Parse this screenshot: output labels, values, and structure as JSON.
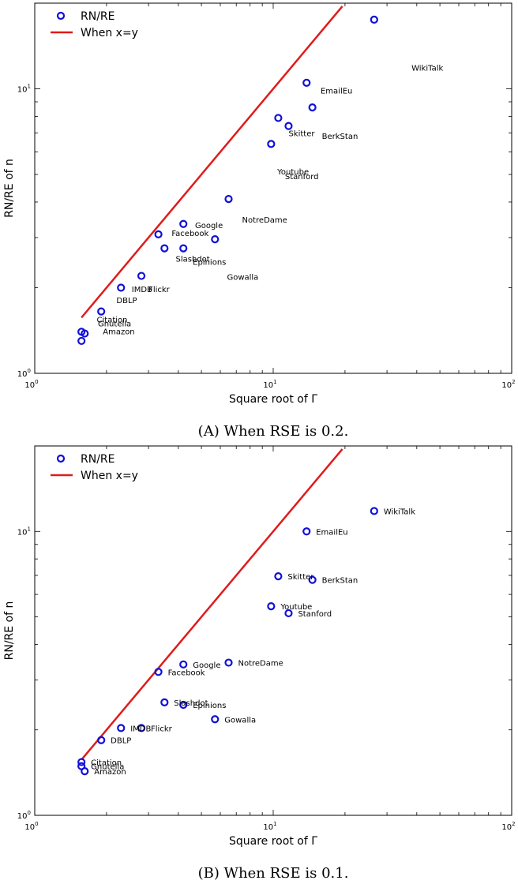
{
  "chart_data": [
    {
      "type": "scatter",
      "caption": "(A) When RSE is 0.2.",
      "xlabel": "Square root of Γ",
      "ylabel": "RN/RE of n",
      "xscale": "log",
      "yscale": "log",
      "xlim": [
        1,
        100
      ],
      "ylim": [
        1,
        20
      ],
      "xticks": [
        {
          "v": 1,
          "label": "10",
          "exp": "0"
        },
        {
          "v": 10,
          "label": "10",
          "exp": "1"
        },
        {
          "v": 100,
          "label": "10",
          "exp": "2"
        }
      ],
      "yticks": [
        {
          "v": 1,
          "label": "10",
          "exp": "0"
        },
        {
          "v": 10,
          "label": "10",
          "exp": "1"
        }
      ],
      "legend": {
        "position": "top-left",
        "entries": [
          "RN/RE",
          "When x=y"
        ]
      },
      "colors": {
        "points": "#1010d8",
        "line": "#e01b1b"
      },
      "line": {
        "name": "When x=y",
        "x": [
          1.57,
          19.5
        ],
        "y": [
          1.57,
          19.5
        ]
      },
      "series": [
        {
          "name": "RN/RE",
          "points": [
            {
              "x": 26.5,
              "y": 17.5,
              "label": ""
            },
            {
              "x": 13.8,
              "y": 10.5,
              "label": ""
            },
            {
              "x": 14.6,
              "y": 8.6,
              "label": ""
            },
            {
              "x": 10.5,
              "y": 7.9,
              "label": ""
            },
            {
              "x": 11.6,
              "y": 7.4,
              "label": ""
            },
            {
              "x": 9.8,
              "y": 6.4,
              "label": ""
            },
            {
              "x": 6.5,
              "y": 4.1,
              "label": ""
            },
            {
              "x": 4.2,
              "y": 3.35,
              "label": ""
            },
            {
              "x": 3.3,
              "y": 3.08,
              "label": ""
            },
            {
              "x": 5.7,
              "y": 2.96,
              "label": ""
            },
            {
              "x": 3.5,
              "y": 2.75,
              "label": ""
            },
            {
              "x": 4.2,
              "y": 2.75,
              "label": ""
            },
            {
              "x": 2.8,
              "y": 2.2,
              "label": ""
            },
            {
              "x": 2.3,
              "y": 2.0,
              "label": ""
            },
            {
              "x": 1.9,
              "y": 1.65,
              "label": ""
            },
            {
              "x": 1.57,
              "y": 1.4,
              "label": ""
            },
            {
              "x": 1.62,
              "y": 1.38,
              "label": ""
            },
            {
              "x": 1.57,
              "y": 1.3,
              "label": ""
            }
          ]
        }
      ],
      "labels": [
        {
          "text": "WikiTalk",
          "x": 38,
          "y": 11.8
        },
        {
          "text": "EmailEu",
          "x": 15.8,
          "y": 9.8
        },
        {
          "text": "Skitter",
          "x": 11.6,
          "y": 6.95
        },
        {
          "text": "BerkStan",
          "x": 16.0,
          "y": 6.8
        },
        {
          "text": "Youtube",
          "x": 10.4,
          "y": 5.1
        },
        {
          "text": "Stanford",
          "x": 11.2,
          "y": 4.9
        },
        {
          "text": "NotreDame",
          "x": 7.4,
          "y": 3.45
        },
        {
          "text": "Google",
          "x": 4.7,
          "y": 3.3
        },
        {
          "text": "Facebook",
          "x": 3.75,
          "y": 3.1
        },
        {
          "text": "Slashdot",
          "x": 3.9,
          "y": 2.52
        },
        {
          "text": "Epinions",
          "x": 4.6,
          "y": 2.45
        },
        {
          "text": "Gowalla",
          "x": 6.4,
          "y": 2.17
        },
        {
          "text": "IMDB",
          "x": 2.55,
          "y": 1.97
        },
        {
          "text": "Flickr",
          "x": 3.0,
          "y": 1.97
        },
        {
          "text": "DBLP",
          "x": 2.2,
          "y": 1.8
        },
        {
          "text": "Citation",
          "x": 1.82,
          "y": 1.54
        },
        {
          "text": "Gnutella",
          "x": 1.84,
          "y": 1.49
        },
        {
          "text": "Amazon",
          "x": 1.93,
          "y": 1.4
        }
      ]
    },
    {
      "type": "scatter",
      "caption": "(B) When RSE is 0.1.",
      "xlabel": "Square root of Γ",
      "ylabel": "RN/RE of n",
      "xscale": "log",
      "yscale": "log",
      "xlim": [
        1,
        100
      ],
      "ylim": [
        1,
        20
      ],
      "xticks": [
        {
          "v": 1,
          "label": "10",
          "exp": "0"
        },
        {
          "v": 10,
          "label": "10",
          "exp": "1"
        },
        {
          "v": 100,
          "label": "10",
          "exp": "2"
        }
      ],
      "yticks": [
        {
          "v": 1,
          "label": "10",
          "exp": "0"
        },
        {
          "v": 10,
          "label": "10",
          "exp": "1"
        }
      ],
      "legend": {
        "position": "top-left",
        "entries": [
          "RN/RE",
          "When x=y"
        ]
      },
      "colors": {
        "points": "#1010d8",
        "line": "#e01b1b"
      },
      "line": {
        "name": "When x=y",
        "x": [
          1.57,
          19.5
        ],
        "y": [
          1.57,
          19.5
        ]
      },
      "series": [
        {
          "name": "RN/RE",
          "points": [
            {
              "x": 26.5,
              "y": 11.8,
              "label": "WikiTalk"
            },
            {
              "x": 13.8,
              "y": 10.0,
              "label": "EmailEu"
            },
            {
              "x": 10.5,
              "y": 6.95,
              "label": "Skitter"
            },
            {
              "x": 14.6,
              "y": 6.75,
              "label": "BerkStan"
            },
            {
              "x": 9.8,
              "y": 5.45,
              "label": "Youtube"
            },
            {
              "x": 11.6,
              "y": 5.15,
              "label": "Stanford"
            },
            {
              "x": 6.5,
              "y": 3.45,
              "label": "NotreDame"
            },
            {
              "x": 4.2,
              "y": 3.4,
              "label": "Google"
            },
            {
              "x": 3.3,
              "y": 3.2,
              "label": "Facebook"
            },
            {
              "x": 3.5,
              "y": 2.5,
              "label": "Slashdot"
            },
            {
              "x": 4.2,
              "y": 2.45,
              "label": "Epinions"
            },
            {
              "x": 5.7,
              "y": 2.18,
              "label": "Gowalla"
            },
            {
              "x": 2.3,
              "y": 2.03,
              "label": "IMDB"
            },
            {
              "x": 2.8,
              "y": 2.03,
              "label": "Flickr"
            },
            {
              "x": 1.9,
              "y": 1.84,
              "label": "DBLP"
            },
            {
              "x": 1.57,
              "y": 1.54,
              "label": "Citation"
            },
            {
              "x": 1.57,
              "y": 1.49,
              "label": "Gnutella"
            },
            {
              "x": 1.62,
              "y": 1.43,
              "label": "Amazon"
            }
          ]
        }
      ]
    }
  ]
}
